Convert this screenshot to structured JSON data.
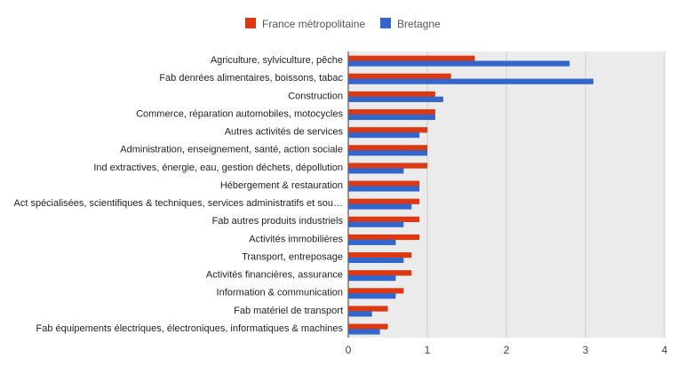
{
  "chart_data": {
    "type": "bar",
    "orientation": "horizontal",
    "categories": [
      "Agriculture, sylviculture, pêche",
      "Fab denrées alimentaires, boissons, tabac",
      "Construction",
      "Commerce, réparation automobiles, motocycles",
      "Autres activités de services",
      "Administration, enseignement, santé, action sociale",
      "Ind extractives, énergie, eau, gestion déchets, dépollution",
      "Hébergement & restauration",
      "Act spécialisées, scientifiques & techniques, services administratifs et sou…",
      "Fab autres produits industriels",
      "Activités immobilières",
      "Transport, entreposage",
      "Activités financières, assurance",
      "Information & communication",
      "Fab matériel de transport",
      "Fab équipements électriques, électroniques, informatiques & machines"
    ],
    "series": [
      {
        "name": "France métropolitaine",
        "color": "#dc3912",
        "values": [
          1.6,
          1.3,
          1.1,
          1.1,
          1.0,
          1.0,
          1.0,
          0.9,
          0.9,
          0.9,
          0.9,
          0.8,
          0.8,
          0.7,
          0.5,
          0.5
        ]
      },
      {
        "name": "Bretagne",
        "color": "#3366cc",
        "values": [
          2.8,
          3.1,
          1.2,
          1.1,
          0.9,
          1.0,
          0.7,
          0.9,
          0.8,
          0.7,
          0.6,
          0.7,
          0.6,
          0.6,
          0.3,
          0.4
        ]
      }
    ],
    "xlim": [
      0,
      4
    ],
    "x_ticks": [
      "0",
      "1",
      "2",
      "3",
      "4"
    ],
    "legend_position": "top",
    "grid": true,
    "plot_background": "#ebebeb"
  }
}
